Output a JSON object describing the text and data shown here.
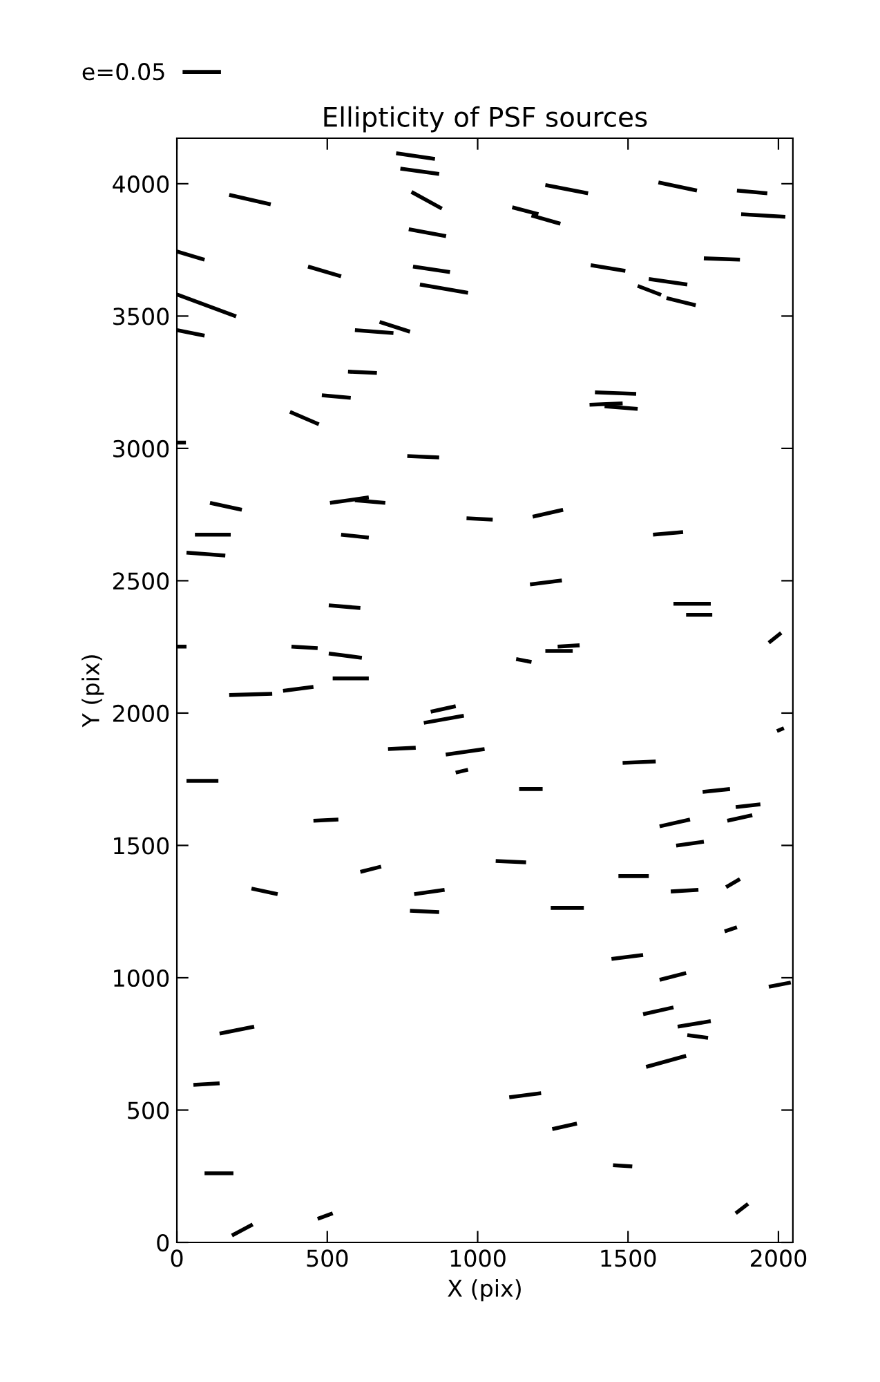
{
  "chart_data": {
    "type": "line",
    "title": "Ellipticity of PSF sources",
    "xlabel": "X (pix)",
    "ylabel": "Y (pix)",
    "xlim": [
      0,
      2048
    ],
    "ylim": [
      0,
      4172
    ],
    "xticks": [
      0,
      500,
      1000,
      1500,
      2000
    ],
    "yticks": [
      0,
      500,
      1000,
      1500,
      2000,
      2500,
      3000,
      3500,
      4000
    ],
    "color": "#000000",
    "legend": "top left",
    "series": [
      {
        "name": "e=0.05",
        "x": [
          729,
          858
        ],
        "values": [
          4115,
          4094
        ]
      },
      {
        "x": [
          743,
          872
        ],
        "values": [
          4057,
          4037
        ]
      },
      {
        "x": [
          780,
          881
        ],
        "values": [
          3969,
          3906
        ]
      },
      {
        "x": [
          771,
          895
        ],
        "values": [
          3828,
          3802
        ]
      },
      {
        "x": [
          785,
          908
        ],
        "values": [
          3687,
          3666
        ]
      },
      {
        "x": [
          808,
          968
        ],
        "values": [
          3619,
          3588
        ]
      },
      {
        "x": [
          174,
          312
        ],
        "values": [
          3958,
          3922
        ]
      },
      {
        "x": [
          0,
          92
        ],
        "values": [
          3744,
          3713
        ]
      },
      {
        "x": [
          0,
          197
        ],
        "values": [
          3582,
          3499
        ]
      },
      {
        "x": [
          0,
          92
        ],
        "values": [
          3447,
          3426
        ]
      },
      {
        "x": [
          436,
          546
        ],
        "values": [
          3687,
          3650
        ]
      },
      {
        "x": [
          674,
          775
        ],
        "values": [
          3478,
          3441
        ]
      },
      {
        "x": [
          592,
          720
        ],
        "values": [
          3447,
          3436
        ]
      },
      {
        "x": [
          569,
          665
        ],
        "values": [
          3290,
          3285
        ]
      },
      {
        "x": [
          482,
          578
        ],
        "values": [
          3201,
          3191
        ]
      },
      {
        "x": [
          376,
          472
        ],
        "values": [
          3138,
          3091
        ]
      },
      {
        "x": [
          766,
          872
        ],
        "values": [
          2971,
          2966
        ]
      },
      {
        "x": [
          0,
          30
        ],
        "values": [
          3022,
          3022
        ]
      },
      {
        "x": [
          1225,
          1367
        ],
        "values": [
          3995,
          3964
        ]
      },
      {
        "x": [
          1115,
          1202
        ],
        "values": [
          3911,
          3885
        ]
      },
      {
        "x": [
          1179,
          1275
        ],
        "values": [
          3880,
          3849
        ]
      },
      {
        "x": [
          1601,
          1729
        ],
        "values": [
          4005,
          3974
        ]
      },
      {
        "x": [
          1862,
          1963
        ],
        "values": [
          3974,
          3964
        ]
      },
      {
        "x": [
          1876,
          2023
        ],
        "values": [
          3885,
          3875
        ]
      },
      {
        "x": [
          1376,
          1491
        ],
        "values": [
          3692,
          3671
        ]
      },
      {
        "x": [
          1569,
          1697
        ],
        "values": [
          3640,
          3619
        ]
      },
      {
        "x": [
          1532,
          1610
        ],
        "values": [
          3614,
          3580
        ]
      },
      {
        "x": [
          1628,
          1725
        ],
        "values": [
          3568,
          3541
        ]
      },
      {
        "x": [
          1752,
          1872
        ],
        "values": [
          3718,
          3713
        ]
      },
      {
        "x": [
          1390,
          1527
        ],
        "values": [
          3212,
          3206
        ]
      },
      {
        "x": [
          1372,
          1482
        ],
        "values": [
          3165,
          3170
        ]
      },
      {
        "x": [
          1422,
          1532
        ],
        "values": [
          3159,
          3149
        ]
      },
      {
        "x": [
          110,
          216
        ],
        "values": [
          2794,
          2768
        ]
      },
      {
        "x": [
          60,
          179
        ],
        "values": [
          2674,
          2674
        ]
      },
      {
        "x": [
          32,
          161
        ],
        "values": [
          2606,
          2595
        ]
      },
      {
        "x": [
          509,
          638
        ],
        "values": [
          2794,
          2815
        ]
      },
      {
        "x": [
          592,
          693
        ],
        "values": [
          2804,
          2794
        ]
      },
      {
        "x": [
          546,
          638
        ],
        "values": [
          2674,
          2663
        ]
      },
      {
        "x": [
          963,
          1050
        ],
        "values": [
          2736,
          2731
        ]
      },
      {
        "x": [
          505,
          610
        ],
        "values": [
          2407,
          2397
        ]
      },
      {
        "x": [
          0,
          32
        ],
        "values": [
          2251,
          2251
        ]
      },
      {
        "x": [
          381,
          468
        ],
        "values": [
          2251,
          2245
        ]
      },
      {
        "x": [
          505,
          615
        ],
        "values": [
          2225,
          2209
        ]
      },
      {
        "x": [
          518,
          638
        ],
        "values": [
          2131,
          2131
        ]
      },
      {
        "x": [
          174,
          317
        ],
        "values": [
          2068,
          2073
        ]
      },
      {
        "x": [
          353,
          454
        ],
        "values": [
          2084,
          2099
        ]
      },
      {
        "x": [
          844,
          927
        ],
        "values": [
          2005,
          2026
        ]
      },
      {
        "x": [
          821,
          954
        ],
        "values": [
          1963,
          1990
        ]
      },
      {
        "x": [
          702,
          794
        ],
        "values": [
          1864,
          1869
        ]
      },
      {
        "x": [
          894,
          1023
        ],
        "values": [
          1843,
          1864
        ]
      },
      {
        "x": [
          927,
          968
        ],
        "values": [
          1775,
          1786
        ]
      },
      {
        "x": [
          32,
          138
        ],
        "values": [
          1744,
          1744
        ]
      },
      {
        "x": [
          454,
          537
        ],
        "values": [
          1593,
          1598
        ]
      },
      {
        "x": [
          1183,
          1284
        ],
        "values": [
          2742,
          2768
        ]
      },
      {
        "x": [
          1583,
          1683
        ],
        "values": [
          2674,
          2684
        ]
      },
      {
        "x": [
          1174,
          1280
        ],
        "values": [
          2486,
          2501
        ]
      },
      {
        "x": [
          1651,
          1775
        ],
        "values": [
          2413,
          2413
        ]
      },
      {
        "x": [
          1693,
          1780
        ],
        "values": [
          2371,
          2371
        ]
      },
      {
        "x": [
          1968,
          2009
        ],
        "values": [
          2266,
          2303
        ]
      },
      {
        "x": [
          1128,
          1179
        ],
        "values": [
          2204,
          2193
        ]
      },
      {
        "x": [
          1225,
          1316
        ],
        "values": [
          2235,
          2235
        ]
      },
      {
        "x": [
          1266,
          1339
        ],
        "values": [
          2251,
          2256
        ]
      },
      {
        "x": [
          1995,
          2018
        ],
        "values": [
          1932,
          1943
        ]
      },
      {
        "x": [
          1482,
          1592
        ],
        "values": [
          1812,
          1817
        ]
      },
      {
        "x": [
          1138,
          1216
        ],
        "values": [
          1713,
          1713
        ]
      },
      {
        "x": [
          1748,
          1839
        ],
        "values": [
          1702,
          1713
        ]
      },
      {
        "x": [
          1858,
          1940
        ],
        "values": [
          1645,
          1655
        ]
      },
      {
        "x": [
          1605,
          1706
        ],
        "values": [
          1572,
          1598
        ]
      },
      {
        "x": [
          1830,
          1913
        ],
        "values": [
          1593,
          1614
        ]
      },
      {
        "x": [
          1660,
          1752
        ],
        "values": [
          1499,
          1514
        ]
      },
      {
        "x": [
          248,
          335
        ],
        "values": [
          1337,
          1316
        ]
      },
      {
        "x": [
          610,
          679
        ],
        "values": [
          1400,
          1420
        ]
      },
      {
        "x": [
          789,
          890
        ],
        "values": [
          1316,
          1332
        ]
      },
      {
        "x": [
          775,
          872
        ],
        "values": [
          1253,
          1248
        ]
      },
      {
        "x": [
          142,
          257
        ],
        "values": [
          789,
          815
        ]
      },
      {
        "x": [
          55,
          142
        ],
        "values": [
          595,
          601
        ]
      },
      {
        "x": [
          92,
          188
        ],
        "values": [
          261,
          261
        ]
      },
      {
        "x": [
          183,
          252
        ],
        "values": [
          26,
          68
        ]
      },
      {
        "x": [
          468,
          518
        ],
        "values": [
          89,
          110
        ]
      },
      {
        "x": [
          1060,
          1161
        ],
        "values": [
          1441,
          1436
        ]
      },
      {
        "x": [
          1468,
          1569
        ],
        "values": [
          1384,
          1384
        ]
      },
      {
        "x": [
          1642,
          1734
        ],
        "values": [
          1326,
          1332
        ]
      },
      {
        "x": [
          1826,
          1872
        ],
        "values": [
          1342,
          1373
        ]
      },
      {
        "x": [
          1243,
          1353
        ],
        "values": [
          1264,
          1264
        ]
      },
      {
        "x": [
          1821,
          1862
        ],
        "values": [
          1175,
          1191
        ]
      },
      {
        "x": [
          1445,
          1550
        ],
        "values": [
          1071,
          1086
        ]
      },
      {
        "x": [
          1605,
          1693
        ],
        "values": [
          992,
          1018
        ]
      },
      {
        "x": [
          1968,
          2041
        ],
        "values": [
          966,
          982
        ]
      },
      {
        "x": [
          1550,
          1651
        ],
        "values": [
          862,
          888
        ]
      },
      {
        "x": [
          1665,
          1775
        ],
        "values": [
          815,
          836
        ]
      },
      {
        "x": [
          1697,
          1766
        ],
        "values": [
          783,
          773
        ]
      },
      {
        "x": [
          1560,
          1693
        ],
        "values": [
          663,
          705
        ]
      },
      {
        "x": [
          1105,
          1211
        ],
        "values": [
          548,
          564
        ]
      },
      {
        "x": [
          1248,
          1330
        ],
        "values": [
          428,
          449
        ]
      },
      {
        "x": [
          1450,
          1514
        ],
        "values": [
          292,
          287
        ]
      },
      {
        "x": [
          1858,
          1899
        ],
        "values": [
          110,
          146
        ]
      }
    ]
  }
}
